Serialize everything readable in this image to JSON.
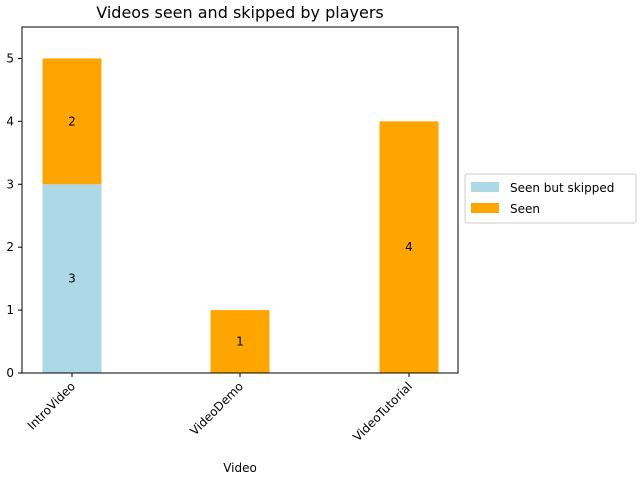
{
  "chart_data": {
    "type": "bar",
    "stacked": true,
    "title": "Videos seen and skipped by players",
    "xlabel": "Video",
    "ylabel": "",
    "categories": [
      "IntroVideo",
      "VideoDemo",
      "VideoTutorial"
    ],
    "series": [
      {
        "name": "Seen but skipped",
        "values": [
          3,
          0,
          0
        ],
        "color": "#add8e6"
      },
      {
        "name": "Seen",
        "values": [
          2,
          1,
          4
        ],
        "color": "#ffa500"
      }
    ],
    "ylim": [
      0,
      5.5
    ],
    "yticks": [
      "0",
      "1",
      "2",
      "3",
      "4",
      "5"
    ],
    "grid": false,
    "legend_position": "right"
  }
}
